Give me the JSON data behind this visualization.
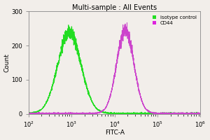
{
  "title": "Multi-sample : All Events",
  "xlabel": "FITC-A",
  "ylabel": "Count",
  "xlim": [
    100,
    1000000
  ],
  "ylim": [
    0,
    300
  ],
  "yticks": [
    0,
    100,
    200,
    300
  ],
  "green_peak_log": 2.95,
  "green_peak_height": 240,
  "green_sigma_log": 0.27,
  "magenta_peak_log": 4.25,
  "magenta_peak_height": 245,
  "magenta_sigma_log": 0.2,
  "green_color": "#22dd22",
  "magenta_color": "#cc44cc",
  "bg_color": "#f2eeea",
  "plot_bg_color": "#f2eeea",
  "legend_labels": [
    "isotype control",
    "CD44"
  ],
  "legend_colors": [
    "#22dd22",
    "#dd22dd"
  ],
  "title_fontsize": 7,
  "axis_fontsize": 6.5,
  "tick_fontsize": 6
}
